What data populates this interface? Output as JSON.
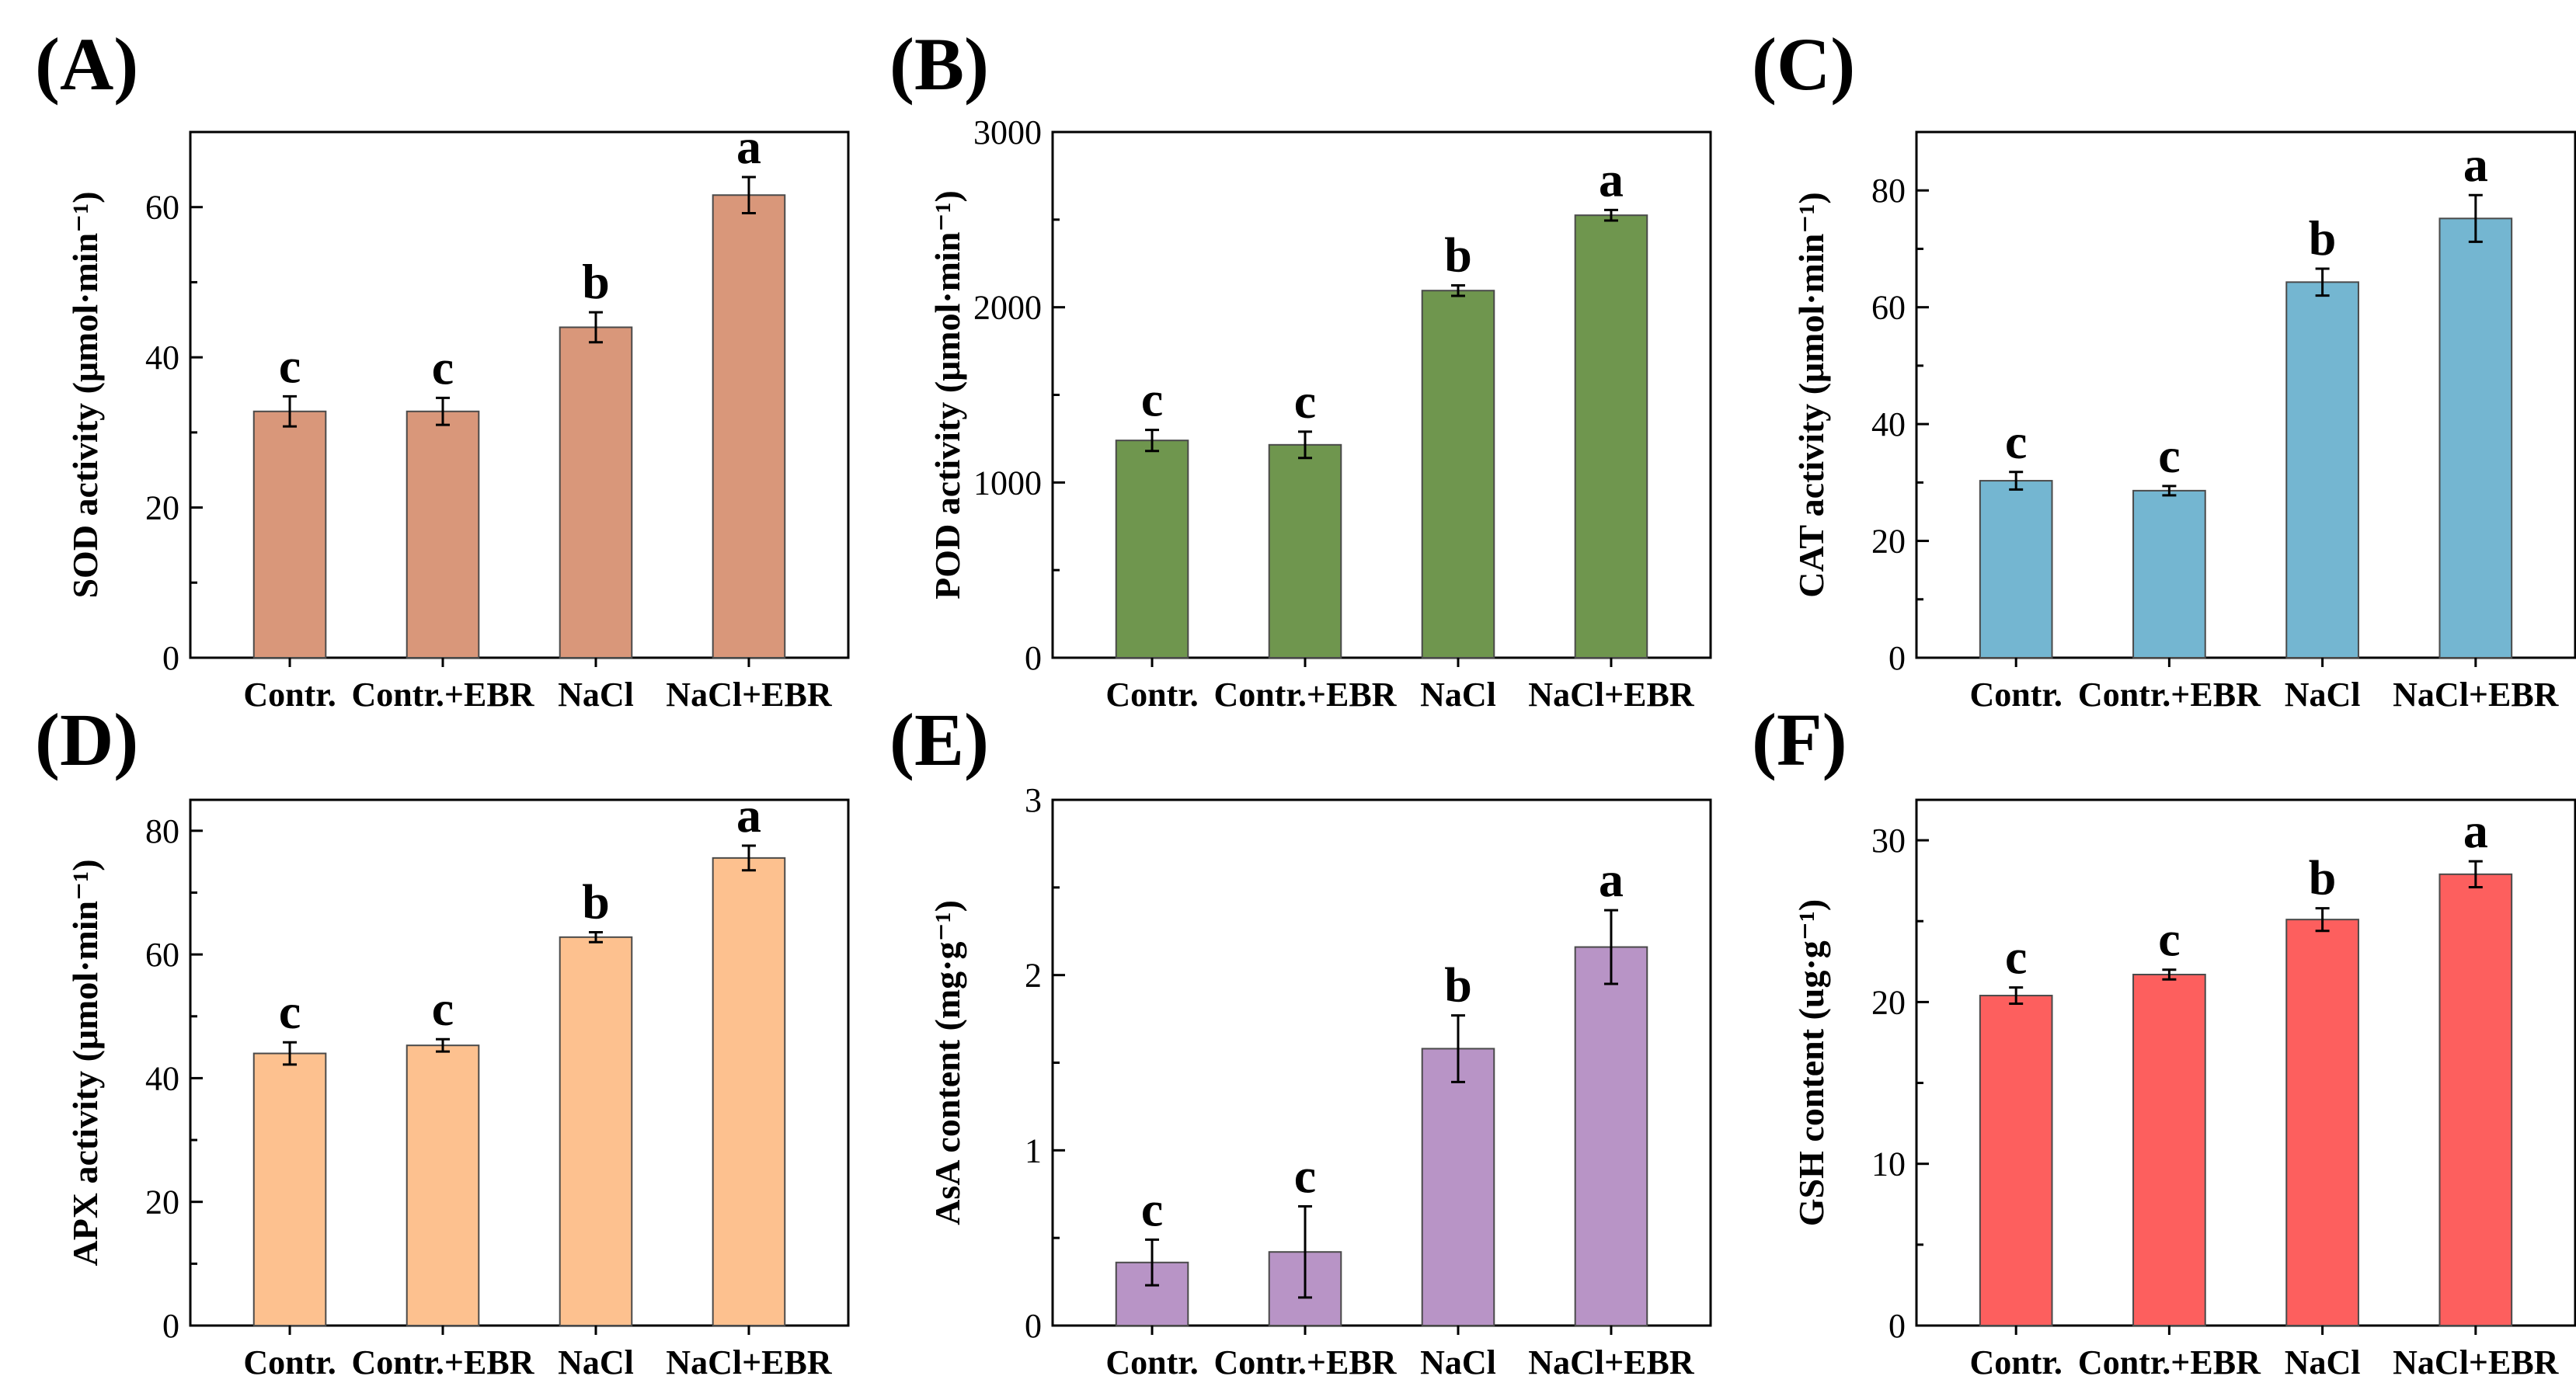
{
  "chart_data": [
    {
      "type": "bar",
      "panel": "(A)",
      "categories": [
        "Contr.",
        "Contr.+EBR",
        "NaCl",
        "NaCl+EBR"
      ],
      "values": [
        32.8,
        32.8,
        44.0,
        61.6
      ],
      "errors": [
        2.0,
        1.8,
        2.0,
        2.4
      ],
      "significance": [
        "c",
        "c",
        "b",
        "a"
      ],
      "ylabel": "SOD activity (μmol·min⁻¹)",
      "ylim": [
        0,
        70
      ],
      "yticks": [
        "0",
        "20",
        "40",
        "60"
      ],
      "color": "#D9977A"
    },
    {
      "type": "bar",
      "panel": "(B)",
      "categories": [
        "Contr.",
        "Contr.+EBR",
        "NaCl",
        "NaCl+EBR"
      ],
      "values": [
        1240,
        1215,
        2095,
        2525
      ],
      "errors": [
        60,
        75,
        30,
        30
      ],
      "significance": [
        "c",
        "c",
        "b",
        "a"
      ],
      "ylabel": "POD activity (μmol·min⁻¹)",
      "ylim": [
        0,
        3000
      ],
      "yticks": [
        "0",
        "1000",
        "2000",
        "3000"
      ],
      "color": "#6F964E"
    },
    {
      "type": "bar",
      "panel": "(C)",
      "categories": [
        "Contr.",
        "Contr.+EBR",
        "NaCl",
        "NaCl+EBR"
      ],
      "values": [
        30.3,
        28.6,
        64.3,
        75.2
      ],
      "errors": [
        1.5,
        0.8,
        2.3,
        4.0
      ],
      "significance": [
        "c",
        "c",
        "b",
        "a"
      ],
      "ylabel": "CAT activity (μmol·min⁻¹)",
      "ylim": [
        0,
        90
      ],
      "yticks": [
        "0",
        "20",
        "40",
        "60",
        "80"
      ],
      "color": "#74B6D1"
    },
    {
      "type": "bar",
      "panel": "(D)",
      "categories": [
        "Contr.",
        "Contr.+EBR",
        "NaCl",
        "NaCl+EBR"
      ],
      "values": [
        44.0,
        45.3,
        62.8,
        75.6
      ],
      "errors": [
        1.8,
        1.0,
        0.8,
        2.0
      ],
      "significance": [
        "c",
        "c",
        "b",
        "a"
      ],
      "ylabel": "APX activity (μmol·min⁻¹)",
      "ylim": [
        0,
        85
      ],
      "yticks": [
        "0",
        "20",
        "40",
        "60",
        "80"
      ],
      "color": "#FDC18F"
    },
    {
      "type": "bar",
      "panel": "(E)",
      "categories": [
        "Contr.",
        "Contr.+EBR",
        "NaCl",
        "NaCl+EBR"
      ],
      "values": [
        0.36,
        0.42,
        1.58,
        2.16
      ],
      "errors": [
        0.13,
        0.26,
        0.19,
        0.21
      ],
      "significance": [
        "c",
        "c",
        "b",
        "a"
      ],
      "ylabel": "AsA content (mg·g⁻¹)",
      "ylim": [
        0,
        3
      ],
      "yticks": [
        "0",
        "1",
        "2",
        "3"
      ],
      "color": "#B894C6"
    },
    {
      "type": "bar",
      "panel": "(F)",
      "categories": [
        "Contr.",
        "Contr.+EBR",
        "NaCl",
        "NaCl+EBR"
      ],
      "values": [
        20.4,
        21.7,
        25.1,
        27.9
      ],
      "errors": [
        0.5,
        0.3,
        0.7,
        0.8
      ],
      "significance": [
        "c",
        "c",
        "b",
        "a"
      ],
      "ylabel": "GSH content (ug·g⁻¹)",
      "ylim": [
        0,
        32.5
      ],
      "yticks": [
        "0",
        "10",
        "20",
        "30"
      ],
      "color": "#FD5F5E"
    }
  ]
}
